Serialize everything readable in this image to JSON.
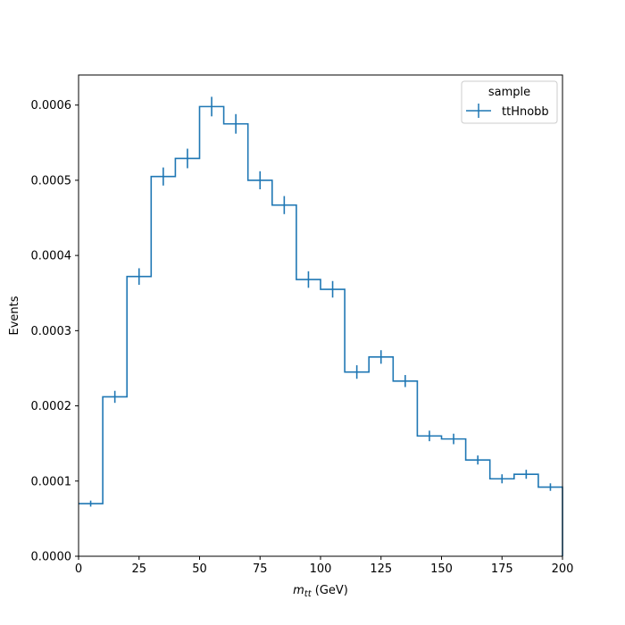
{
  "chart_data": {
    "type": "histogram-step",
    "xlabel_symbol": "m",
    "xlabel_subscript": "tt",
    "xlabel_unit": " (GeV)",
    "ylabel": "Events",
    "xlim": [
      0,
      200
    ],
    "ylim": [
      0,
      0.00064
    ],
    "xticks": [
      0,
      25,
      50,
      75,
      100,
      125,
      150,
      175,
      200
    ],
    "xtick_labels": [
      "0",
      "25",
      "50",
      "75",
      "100",
      "125",
      "150",
      "175",
      "200"
    ],
    "yticks": [
      0,
      0.0001,
      0.0002,
      0.0003,
      0.0004,
      0.0005,
      0.0006
    ],
    "ytick_labels": [
      "0.0000",
      "0.0001",
      "0.0002",
      "0.0003",
      "0.0004",
      "0.0005",
      "0.0006"
    ],
    "grid": false,
    "legend": {
      "title": "sample",
      "placement": "upper right"
    },
    "bin_edges": [
      0,
      10,
      20,
      30,
      40,
      50,
      60,
      70,
      80,
      90,
      100,
      110,
      120,
      130,
      140,
      150,
      160,
      170,
      180,
      190,
      200
    ],
    "series": [
      {
        "name": "ttHnobb",
        "color": "#1f77b4",
        "values": [
          7e-05,
          0.000212,
          0.000372,
          0.000505,
          0.000529,
          0.000598,
          0.000575,
          0.0005,
          0.000467,
          0.000368,
          0.000355,
          0.000245,
          0.000265,
          0.000233,
          0.00016,
          0.000156,
          0.000128,
          0.000103,
          0.000109,
          9.2e-05
        ],
        "errors": [
          4e-06,
          8e-06,
          1.1e-05,
          1.2e-05,
          1.3e-05,
          1.3e-05,
          1.3e-05,
          1.2e-05,
          1.2e-05,
          1.1e-05,
          1.1e-05,
          9e-06,
          9e-06,
          8e-06,
          7e-06,
          7e-06,
          6e-06,
          6e-06,
          6e-06,
          5e-06
        ]
      }
    ]
  }
}
